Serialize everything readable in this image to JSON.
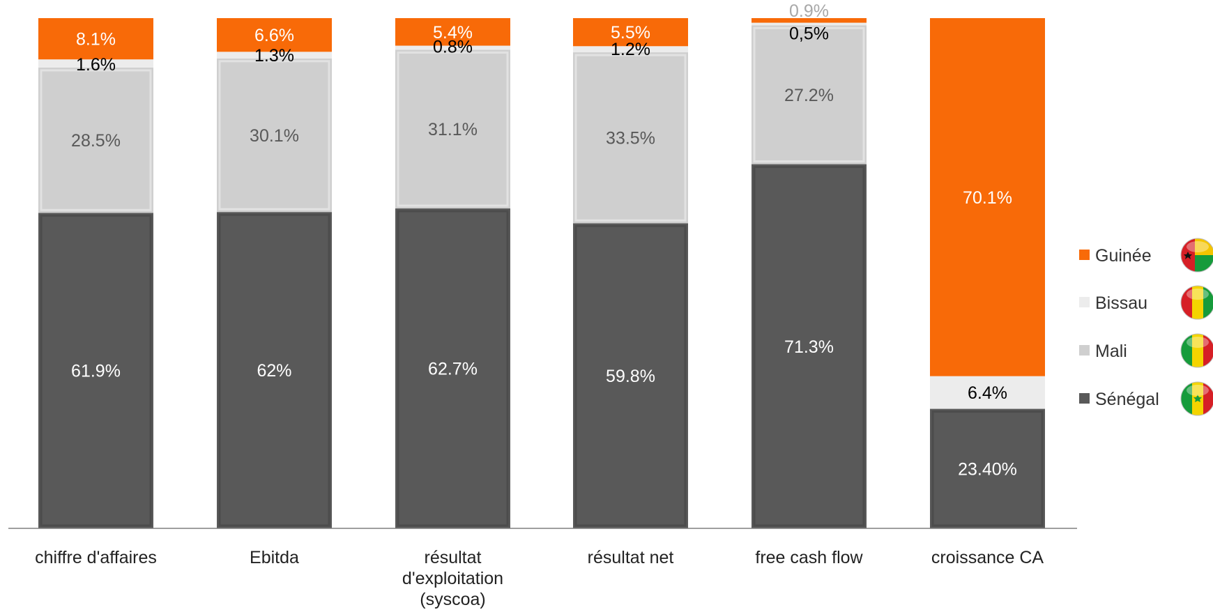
{
  "colors": {
    "guinee": "#f86a08",
    "bissau": "#ececec",
    "mali": "#cfcfcf",
    "senegal": "#595959",
    "axis": "#7f7f7f"
  },
  "chart_data": {
    "type": "bar",
    "stacked": true,
    "percent_stacked": true,
    "title": "",
    "xlabel": "",
    "ylabel": "",
    "ylim": [
      0,
      100
    ],
    "grid": false,
    "legend_position": "right",
    "categories": [
      [
        "chiffre d'affaires"
      ],
      [
        "Ebitda"
      ],
      [
        "résultat",
        "d'exploitation",
        "(syscoa)"
      ],
      [
        "résultat net"
      ],
      [
        "free cash flow"
      ],
      [
        "croissance CA"
      ]
    ],
    "series": [
      {
        "name": "Sénégal",
        "color_key": "senegal",
        "label_color": "#ffffff",
        "values": [
          61.9,
          62,
          62.7,
          59.8,
          71.3,
          23.4
        ],
        "labels": [
          "61.9%",
          "62%",
          "62.7%",
          "59.8%",
          "71.3%",
          "23.40%"
        ]
      },
      {
        "name": "Mali",
        "color_key": "mali",
        "label_color": "#595959",
        "values": [
          28.5,
          30.1,
          31.1,
          33.5,
          27.2,
          0
        ],
        "labels": [
          "28.5%",
          "30.1%",
          "31.1%",
          "33.5%",
          "27.2%",
          ""
        ]
      },
      {
        "name": "Bissau",
        "color_key": "bissau",
        "label_color": "#000000",
        "values": [
          1.6,
          1.3,
          0.8,
          1.2,
          0.5,
          6.4
        ],
        "labels": [
          "1.6%",
          "1.3%",
          "0.8%",
          "1.2%",
          "0,5%",
          "6.4%"
        ]
      },
      {
        "name": "Guinée",
        "color_key": "guinee",
        "label_color": "#ffffff",
        "values": [
          8.1,
          6.6,
          5.4,
          5.5,
          0.9,
          70.1
        ],
        "labels": [
          "8.1%",
          "6.6%",
          "5.4%",
          "5.5%",
          "0.9%",
          "70.1%"
        ]
      }
    ],
    "legend": [
      {
        "name": "Guinée",
        "color_key": "guinee",
        "icon": "guinea-bissau-flag-icon"
      },
      {
        "name": "Bissau",
        "color_key": "bissau",
        "icon": "guinea-flag-icon"
      },
      {
        "name": "Mali",
        "color_key": "mali",
        "icon": "mali-flag-icon"
      },
      {
        "name": "Sénégal",
        "color_key": "senegal",
        "icon": "senegal-flag-icon"
      }
    ]
  }
}
